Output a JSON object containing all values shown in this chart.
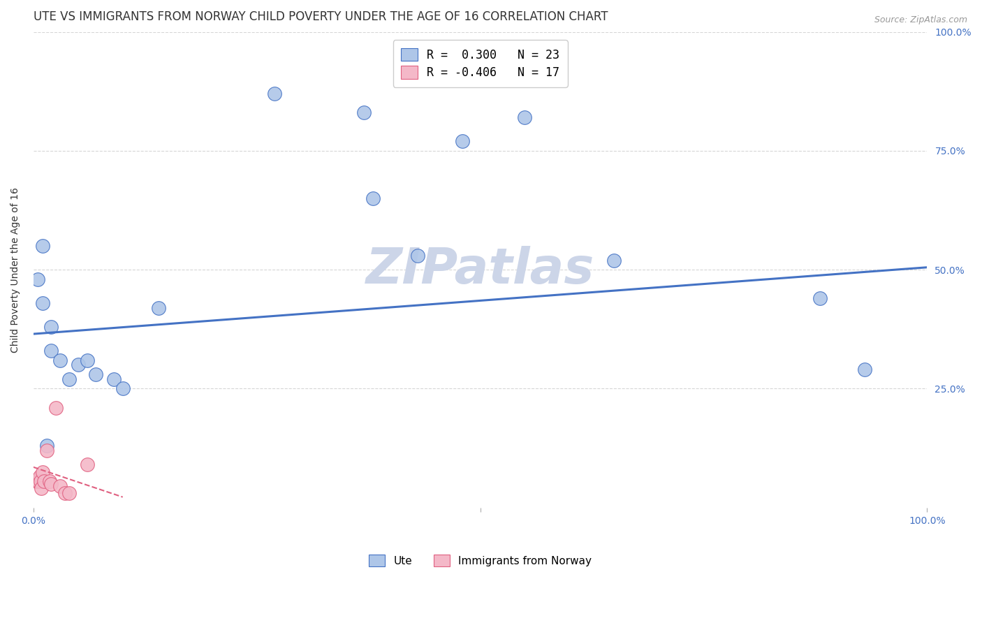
{
  "title": "UTE VS IMMIGRANTS FROM NORWAY CHILD POVERTY UNDER THE AGE OF 16 CORRELATION CHART",
  "source": "Source: ZipAtlas.com",
  "ylabel": "Child Poverty Under the Age of 16",
  "xlim": [
    0.0,
    1.0
  ],
  "ylim": [
    0.0,
    1.0
  ],
  "xtick_labels": [
    "0.0%",
    "",
    "100.0%"
  ],
  "xtick_positions": [
    0.0,
    0.5,
    1.0
  ],
  "ytick_labels_right": [
    "100.0%",
    "75.0%",
    "50.0%",
    "25.0%"
  ],
  "ytick_positions": [
    1.0,
    0.75,
    0.5,
    0.25
  ],
  "watermark": "ZIPatlas",
  "legend_entries_labels": [
    "R =  0.300   N = 23",
    "R = -0.406   N = 17"
  ],
  "legend_bottom_labels": [
    "Ute",
    "Immigrants from Norway"
  ],
  "ute_x": [
    0.005,
    0.01,
    0.01,
    0.02,
    0.02,
    0.03,
    0.04,
    0.05,
    0.06,
    0.07,
    0.09,
    0.1,
    0.14,
    0.27,
    0.37,
    0.38,
    0.43,
    0.48,
    0.55,
    0.65,
    0.88,
    0.93,
    0.015
  ],
  "ute_y": [
    0.48,
    0.55,
    0.43,
    0.38,
    0.33,
    0.31,
    0.27,
    0.3,
    0.31,
    0.28,
    0.27,
    0.25,
    0.42,
    0.87,
    0.83,
    0.65,
    0.53,
    0.77,
    0.82,
    0.52,
    0.44,
    0.29,
    0.13
  ],
  "norway_x": [
    0.003,
    0.004,
    0.005,
    0.006,
    0.007,
    0.008,
    0.009,
    0.01,
    0.012,
    0.015,
    0.018,
    0.02,
    0.025,
    0.03,
    0.035,
    0.04,
    0.06
  ],
  "norway_y": [
    0.055,
    0.055,
    0.06,
    0.055,
    0.065,
    0.055,
    0.04,
    0.075,
    0.055,
    0.12,
    0.055,
    0.05,
    0.21,
    0.045,
    0.03,
    0.03,
    0.09
  ],
  "ute_line_x": [
    0.0,
    1.0
  ],
  "ute_line_y": [
    0.365,
    0.505
  ],
  "norway_line_x": [
    0.0,
    0.1
  ],
  "norway_line_y": [
    0.085,
    0.022
  ],
  "blue_color": "#4472c4",
  "blue_fill": "#aec6e8",
  "pink_color": "#e06080",
  "pink_fill": "#f4b8c8",
  "title_color": "#333333",
  "axis_color": "#4472c4",
  "background_color": "#ffffff",
  "grid_color": "#cccccc",
  "title_fontsize": 12,
  "label_fontsize": 10,
  "tick_fontsize": 10,
  "watermark_color": "#ccd5e8",
  "watermark_fontsize": 52
}
